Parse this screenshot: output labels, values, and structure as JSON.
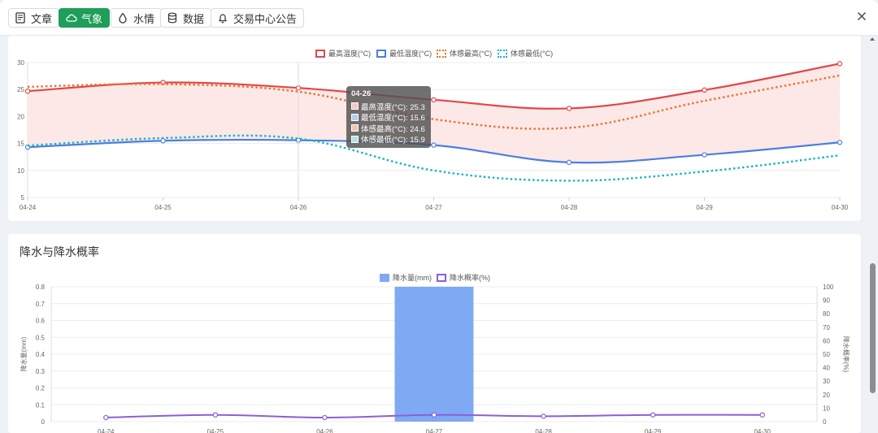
{
  "tabs": [
    {
      "label": "文章",
      "icon": "document-icon",
      "active": false
    },
    {
      "label": "气象",
      "icon": "cloud-icon",
      "active": true
    },
    {
      "label": "水情",
      "icon": "water-drop-icon",
      "active": false
    },
    {
      "label": "数据",
      "icon": "database-icon",
      "active": false
    },
    {
      "label": "交易中心公告",
      "icon": "bell-icon",
      "active": false
    }
  ],
  "colors": {
    "accent": "#1e9e58",
    "max_temp": "#e04848",
    "min_temp": "#4a7fe0",
    "feel_max": "#e8742a",
    "feel_min": "#18b4c4",
    "fill": "#fde5e5",
    "precip_bar": "#7fa9f3",
    "precip_prob": "#8b5fd9"
  },
  "temp_chart": {
    "legend": [
      "最高温度(°C)",
      "最低温度(°C)",
      "体感最高(°C)",
      "体感最低(°C)"
    ]
  },
  "precip_chart": {
    "title": "降水与降水概率",
    "legend": [
      "降水量(mm)",
      "降水概率(%)"
    ],
    "ylabel_left": "降水量(mm)",
    "ylabel_right": "降水概率(%)"
  },
  "tooltip": {
    "title": "04-26",
    "rows": [
      {
        "label": "最高温度(°C): 25.3"
      },
      {
        "label": "最低温度(°C): 15.6"
      },
      {
        "label": "体感最高(°C): 24.6"
      },
      {
        "label": "体感最低(°C): 15.9"
      }
    ]
  },
  "chart_data": [
    {
      "type": "line",
      "x": [
        "04-24",
        "04-25",
        "04-26",
        "04-27",
        "04-28",
        "04-29",
        "04-30"
      ],
      "ylim": [
        5,
        30
      ],
      "yticks": [
        5,
        10,
        15,
        20,
        25,
        30
      ],
      "grid": true,
      "legend_position": "top-center",
      "series": [
        {
          "name": "最高温度(°C)",
          "values": [
            24.7,
            26.3,
            25.3,
            23.1,
            21.5,
            24.9,
            29.8
          ]
        },
        {
          "name": "最低温度(°C)",
          "values": [
            14.3,
            15.5,
            15.6,
            14.7,
            11.5,
            12.9,
            15.2
          ]
        },
        {
          "name": "体感最高(°C)",
          "values": [
            25.5,
            26.0,
            24.6,
            19.5,
            17.9,
            22.9,
            27.6
          ]
        },
        {
          "name": "体感最低(°C)",
          "values": [
            14.6,
            16.0,
            15.9,
            10.0,
            8.1,
            9.8,
            12.8
          ]
        }
      ]
    },
    {
      "type": "bar",
      "x": [
        "04-24",
        "04-25",
        "04-26",
        "04-27",
        "04-28",
        "04-29",
        "04-30"
      ],
      "ylim_left": [
        0,
        0.8
      ],
      "yticks_left": [
        0,
        0.1,
        0.2,
        0.3,
        0.4,
        0.5,
        0.6,
        0.7,
        0.8
      ],
      "ylim_right": [
        0,
        100
      ],
      "yticks_right": [
        0,
        10,
        20,
        30,
        40,
        50,
        60,
        70,
        80,
        90,
        100
      ],
      "grid": true,
      "legend_position": "top-center",
      "series": [
        {
          "name": "降水量(mm)",
          "values": [
            0,
            0,
            0,
            0.8,
            0,
            0,
            0
          ]
        },
        {
          "name": "降水概率(%)",
          "values": [
            3,
            5,
            3,
            5,
            4,
            5,
            5
          ]
        }
      ]
    }
  ]
}
